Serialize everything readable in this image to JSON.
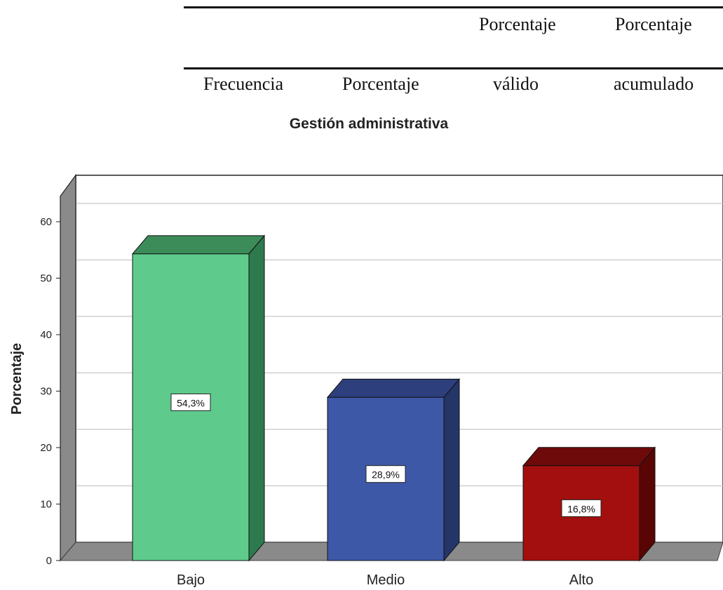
{
  "table_header": {
    "row1": [
      "Porcentaje",
      "Porcentaje"
    ],
    "row2": [
      "Frecuencia",
      "Porcentaje",
      "válido",
      "acumulado"
    ]
  },
  "chart_data": {
    "type": "bar",
    "title": "Gestión administrativa",
    "xlabel": "",
    "ylabel": "Porcentaje",
    "categories": [
      "Bajo",
      "Medio",
      "Alto"
    ],
    "values": [
      54.3,
      28.9,
      16.8
    ],
    "data_labels": [
      "54,3%",
      "28,9%",
      "16,8%"
    ],
    "ylim": [
      0,
      60
    ],
    "yticks": [
      0,
      10,
      20,
      30,
      40,
      50,
      60
    ],
    "grid": true,
    "style": "3d",
    "colors": {
      "bars": [
        {
          "face": "#5ecb8c",
          "side": "#2e7a4f",
          "top": "#3c8c5a"
        },
        {
          "face": "#3e58a8",
          "side": "#243568",
          "top": "#2d3f7c"
        },
        {
          "face": "#a30f0f",
          "side": "#5a0505",
          "top": "#6e0a0a"
        }
      ],
      "wall": "#ffffff",
      "floor": "#8a8a8a",
      "side_wall": "#8a8a8a",
      "grid": "#c8c8c8"
    }
  }
}
